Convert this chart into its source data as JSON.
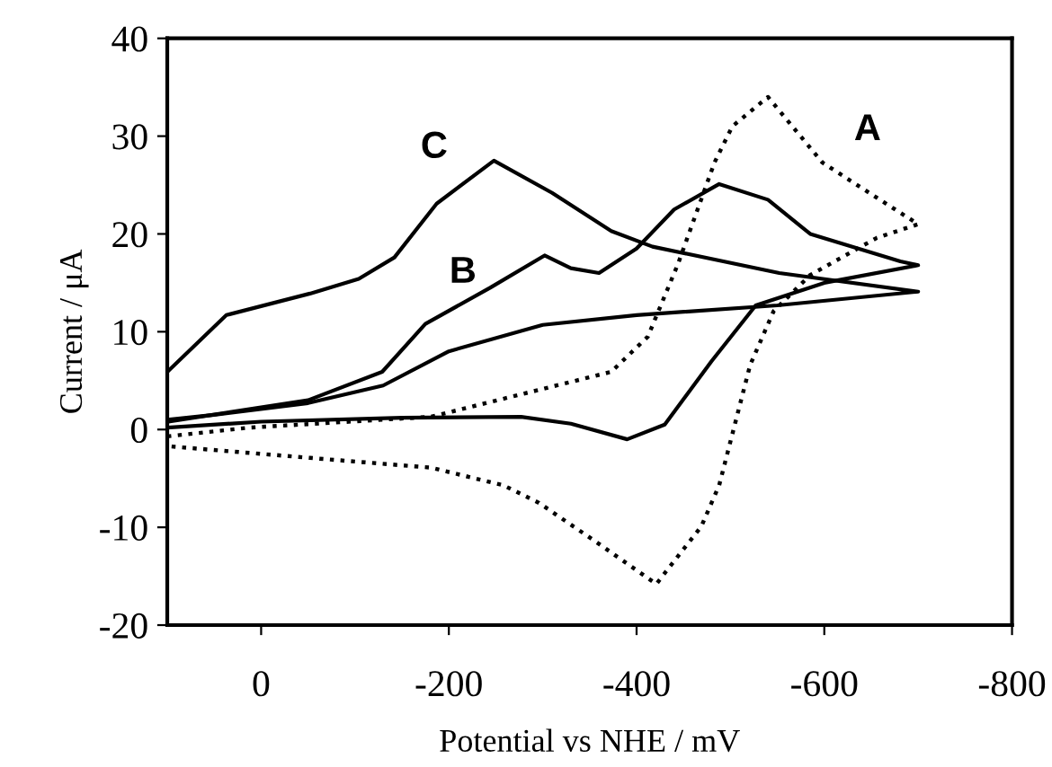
{
  "chart_data": {
    "type": "line",
    "xlabel": "Potential vs NHE / mV",
    "ylabel": "Current / μA",
    "xlim": [
      100,
      -800
    ],
    "xticks": [
      0,
      -200,
      -400,
      -600,
      -800
    ],
    "ylim": [
      -20,
      40
    ],
    "yticks": [
      -20,
      -10,
      0,
      10,
      20,
      30,
      40
    ],
    "grid": false,
    "legend": false,
    "marker": "none",
    "series": [
      {
        "color": "#000000",
        "line_style": "dotted",
        "x": [
          100,
          12,
          -181,
          -373,
          -412,
          -444,
          -483,
          -502,
          -540,
          -598,
          -656,
          -700,
          -656,
          -585,
          -546,
          -521,
          -488,
          -469,
          -421,
          -360,
          -296,
          -258,
          -181,
          -52,
          100
        ],
        "values": [
          -0.7,
          0.2,
          1.3,
          5.9,
          9.5,
          16.9,
          27.3,
          31,
          34,
          27.3,
          23.7,
          21,
          19.6,
          15.8,
          12.1,
          6.6,
          -5.7,
          -9.9,
          -15.8,
          -11.7,
          -7.5,
          -5.7,
          -3.9,
          -2.9,
          -1.7
        ]
      },
      {
        "color": "#000000",
        "line_style": "solid",
        "x": [
          100,
          0,
          -150,
          -277,
          -330,
          -390,
          -430,
          -480,
          -527,
          -600,
          -700,
          -681,
          -585,
          -540,
          -488,
          -440,
          -400,
          -360,
          -330,
          -302,
          -244,
          -175,
          -129,
          -50,
          100
        ],
        "values": [
          0.2,
          0.8,
          1.2,
          1.3,
          0.6,
          -1,
          0.5,
          7,
          12.7,
          15,
          16.8,
          17.2,
          20,
          23.5,
          25.1,
          22.5,
          18.5,
          16,
          16.5,
          17.8,
          14.5,
          10.8,
          5.9,
          3,
          0.8
        ]
      },
      {
        "color": "#000000",
        "line_style": "solid",
        "x": [
          100,
          37,
          -52,
          -104,
          -142,
          -187,
          -248,
          -310,
          -373,
          -417,
          -552,
          -700,
          -550,
          -400,
          -300,
          -200,
          -130,
          -50,
          50,
          100
        ],
        "values": [
          5.9,
          11.7,
          13.9,
          15.4,
          17.6,
          23.1,
          27.5,
          24.2,
          20.3,
          18.7,
          16,
          14.1,
          12.7,
          11.7,
          10.7,
          8,
          4.5,
          2.7,
          1.5,
          1
        ]
      }
    ],
    "annotations": [
      "A",
      "B",
      "C"
    ]
  }
}
